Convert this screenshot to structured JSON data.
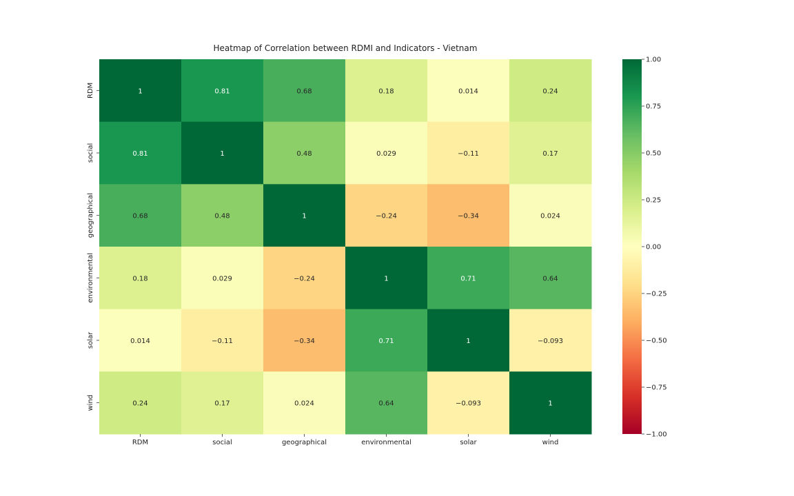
{
  "chart_data": {
    "type": "heatmap",
    "title": "Heatmap of Correlation between RDMI and Indicators - Vietnam",
    "x_labels": [
      "RDM",
      "social",
      "geographical",
      "environmental",
      "solar",
      "wind"
    ],
    "y_labels": [
      "RDM",
      "social",
      "geographical",
      "environmental",
      "solar",
      "wind"
    ],
    "values": [
      [
        1,
        0.81,
        0.68,
        0.18,
        0.014,
        0.24
      ],
      [
        0.81,
        1,
        0.48,
        0.029,
        -0.11,
        0.17
      ],
      [
        0.68,
        0.48,
        1,
        -0.24,
        -0.34,
        0.024
      ],
      [
        0.18,
        0.029,
        -0.24,
        1,
        0.71,
        0.64
      ],
      [
        0.014,
        -0.11,
        -0.34,
        0.71,
        1,
        -0.093
      ],
      [
        0.24,
        0.17,
        0.024,
        0.64,
        -0.093,
        1
      ]
    ],
    "value_labels": [
      [
        "1",
        "0.81",
        "0.68",
        "0.18",
        "0.014",
        "0.24"
      ],
      [
        "0.81",
        "1",
        "0.48",
        "0.029",
        "−0.11",
        "0.17"
      ],
      [
        "0.68",
        "0.48",
        "1",
        "−0.24",
        "−0.34",
        "0.024"
      ],
      [
        "0.18",
        "0.029",
        "−0.24",
        "1",
        "0.71",
        "0.64"
      ],
      [
        "0.014",
        "−0.11",
        "−0.34",
        "0.71",
        "1",
        "−0.093"
      ],
      [
        "0.24",
        "0.17",
        "0.024",
        "0.64",
        "−0.093",
        "1"
      ]
    ],
    "colormap": "RdYlGn",
    "vmin": -1,
    "vmax": 1,
    "colorbar_ticks": [
      1.0,
      0.75,
      0.5,
      0.25,
      0.0,
      -0.25,
      -0.5,
      -0.75,
      -1.0
    ],
    "colorbar_tick_labels": [
      "1.00",
      "0.75",
      "0.50",
      "0.25",
      "0.00",
      "−0.25",
      "−0.50",
      "−0.75",
      "−1.00"
    ]
  }
}
